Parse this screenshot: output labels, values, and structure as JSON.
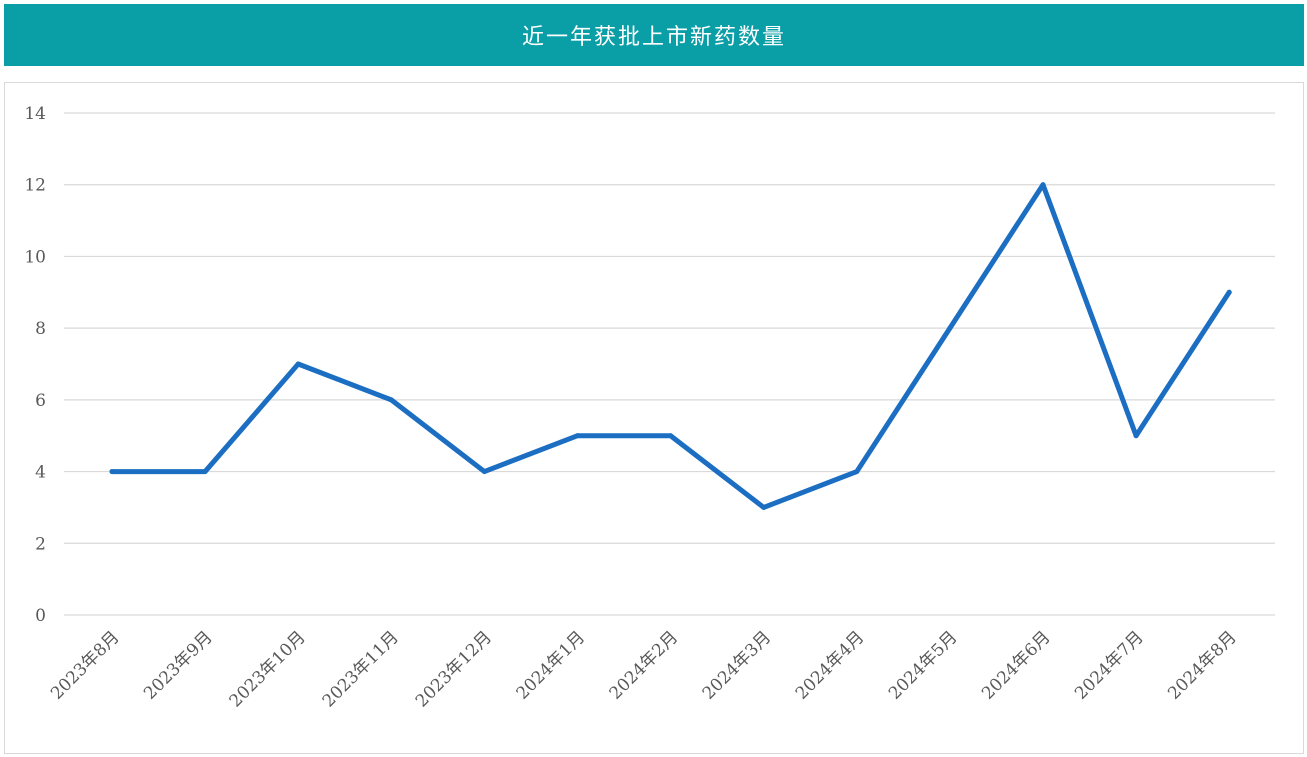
{
  "title": "近一年获批上市新药数量",
  "colors": {
    "title_bar": "#0a9ea6",
    "line": "#1b6ec2",
    "grid": "#d9d9d9",
    "tick_text": "#595959"
  },
  "chart_data": {
    "type": "line",
    "title": "近一年获批上市新药数量",
    "categories": [
      "2023年8月",
      "2023年9月",
      "2023年10月",
      "2023年11月",
      "2023年12月",
      "2024年1月",
      "2024年2月",
      "2024年3月",
      "2024年4月",
      "2024年5月",
      "2024年6月",
      "2024年7月",
      "2024年8月"
    ],
    "series": [
      {
        "values": [
          4,
          4,
          7,
          6,
          4,
          5,
          5,
          3,
          4,
          8,
          12,
          5,
          9
        ]
      }
    ],
    "yticks": [
      0,
      2,
      4,
      6,
      8,
      10,
      12,
      14
    ],
    "ylim": [
      0,
      14
    ],
    "xlabel": "",
    "ylabel": "",
    "grid": "horizontal",
    "legend": "none"
  }
}
